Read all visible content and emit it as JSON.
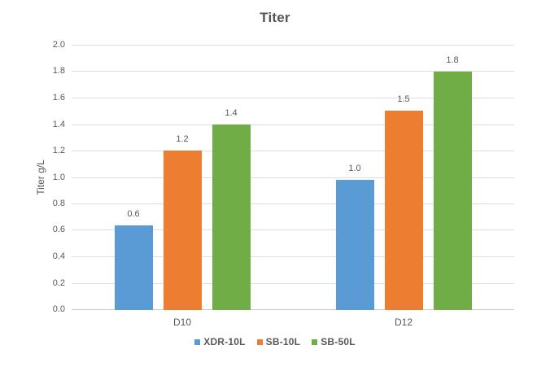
{
  "title": "Titer",
  "chart_data": {
    "type": "bar",
    "title": "Titer",
    "xlabel": "",
    "ylabel": "Titer g/L",
    "categories": [
      "D10",
      "D12"
    ],
    "series": [
      {
        "name": "XDR-10L",
        "color": "#5b9bd5",
        "values": [
          0.64,
          0.98
        ],
        "data_labels": [
          "0.6",
          "1.0"
        ]
      },
      {
        "name": "SB-10L",
        "color": "#ed7d31",
        "values": [
          1.2,
          1.5
        ],
        "data_labels": [
          "1.2",
          "1.5"
        ]
      },
      {
        "name": "SB-50L",
        "color": "#70ad47",
        "values": [
          1.4,
          1.8
        ],
        "data_labels": [
          "1.4",
          "1.8"
        ]
      }
    ],
    "ylim": [
      0.0,
      2.0
    ],
    "ytick_step": 0.2,
    "ytick_labels": [
      "0.0",
      "0.2",
      "0.4",
      "0.6",
      "0.8",
      "1.0",
      "1.2",
      "1.4",
      "1.6",
      "1.8",
      "2.0"
    ],
    "grid": true,
    "legend_position": "bottom"
  },
  "colors": {
    "series_blue": "#5b9bd5",
    "series_orange": "#ed7d31",
    "series_green": "#70ad47",
    "text": "#595959",
    "title_text": "#565656",
    "gridline": "#dedede",
    "axis_line": "#c9c9c9",
    "background": "#ffffff"
  }
}
